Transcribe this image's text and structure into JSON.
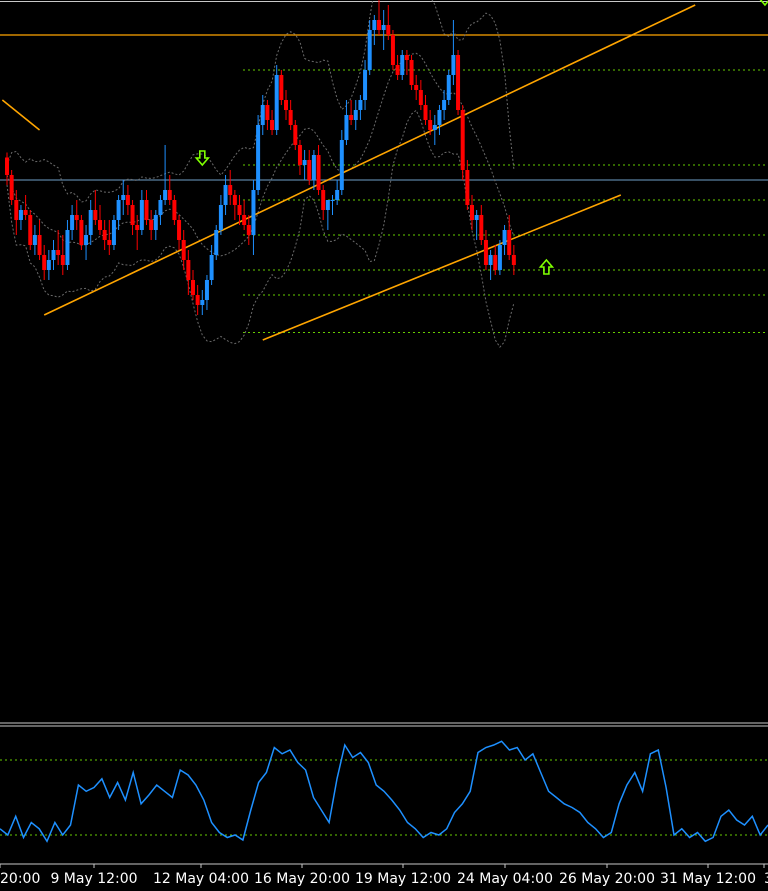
{
  "colors": {
    "background": "#000000",
    "frame": "#c8c8c8",
    "bull": "#1e90ff",
    "bear": "#ff0000",
    "level": "#66cc00",
    "trendline": "#ffa500",
    "horizontal_orange": "#ffa500",
    "horizontal_blue": "#5a7fa0",
    "envelope": "#6b6b6b",
    "oscillator": "#1e90ff",
    "osc_levels": "#66cc00",
    "arrow": "#7fff00"
  },
  "chart_data": [
    {
      "type": "candlestick",
      "title": "",
      "price_scale": [
        0,
        100
      ],
      "candles": [
        [
          70.5,
          71.5,
          65,
          67
        ],
        [
          67,
          68,
          61,
          62
        ],
        [
          62,
          64,
          55,
          58
        ],
        [
          58,
          61,
          56,
          60
        ],
        [
          60,
          63,
          58,
          59
        ],
        [
          59,
          60,
          52,
          53
        ],
        [
          53,
          57,
          51,
          55
        ],
        [
          55,
          58,
          50,
          51
        ],
        [
          51,
          53,
          46,
          48
        ],
        [
          48,
          52,
          46,
          50
        ],
        [
          50,
          54,
          48,
          52
        ],
        [
          52,
          56,
          49,
          51
        ],
        [
          51,
          55,
          47,
          49
        ],
        [
          49,
          58,
          48,
          56
        ],
        [
          56,
          61,
          54,
          59
        ],
        [
          59,
          62,
          56,
          58
        ],
        [
          58,
          59,
          52,
          53
        ],
        [
          53,
          57,
          50,
          55
        ],
        [
          55,
          62,
          53,
          60
        ],
        [
          60,
          64,
          57,
          58
        ],
        [
          58,
          61,
          55,
          56
        ],
        [
          56,
          58,
          52,
          54
        ],
        [
          54,
          58,
          51,
          53
        ],
        [
          53,
          59,
          52,
          58
        ],
        [
          58,
          63,
          56,
          62
        ],
        [
          62,
          66,
          59,
          63
        ],
        [
          63,
          65,
          59,
          61
        ],
        [
          61,
          62,
          55,
          57
        ],
        [
          57,
          59,
          52,
          56
        ],
        [
          56,
          64,
          55,
          62
        ],
        [
          62,
          64,
          57,
          58
        ],
        [
          58,
          60,
          54,
          56
        ],
        [
          56,
          60,
          54,
          59
        ],
        [
          59,
          63,
          57,
          62
        ],
        [
          62,
          73,
          61,
          64
        ],
        [
          64,
          67,
          61,
          62
        ],
        [
          62,
          63,
          57,
          58
        ],
        [
          58,
          59,
          52,
          54
        ],
        [
          54,
          56,
          48,
          50
        ],
        [
          50,
          52,
          43,
          46
        ],
        [
          46,
          48,
          42,
          43
        ],
        [
          43,
          45,
          39,
          41
        ],
        [
          41,
          44,
          39,
          42
        ],
        [
          42,
          47,
          40,
          46
        ],
        [
          46,
          53,
          45,
          51
        ],
        [
          51,
          57,
          50,
          56
        ],
        [
          56,
          63,
          55,
          61
        ],
        [
          61,
          67,
          59,
          65
        ],
        [
          65,
          68,
          61,
          63
        ],
        [
          63,
          64,
          58,
          61
        ],
        [
          61,
          63,
          57,
          59
        ],
        [
          59,
          62,
          56,
          57
        ],
        [
          57,
          59,
          53,
          55
        ],
        [
          55,
          66,
          51,
          64
        ],
        [
          64,
          79,
          63,
          77
        ],
        [
          77,
          83,
          75,
          81
        ],
        [
          81,
          82,
          76,
          78
        ],
        [
          78,
          80,
          75,
          76
        ],
        [
          76,
          89,
          75,
          87
        ],
        [
          87,
          88,
          81,
          82
        ],
        [
          82,
          84,
          78,
          80
        ],
        [
          80,
          82,
          76,
          77
        ],
        [
          77,
          78,
          72,
          73
        ],
        [
          73,
          74,
          67,
          69
        ],
        [
          69,
          72,
          66,
          70
        ],
        [
          70,
          72,
          65,
          66
        ],
        [
          66,
          72,
          64,
          71
        ],
        [
          71,
          73,
          63,
          64
        ],
        [
          64,
          65,
          58,
          60
        ],
        [
          60,
          62,
          56,
          62
        ],
        [
          62,
          63,
          59,
          62
        ],
        [
          62,
          66,
          61,
          64
        ],
        [
          64,
          76,
          63,
          74
        ],
        [
          74,
          82,
          73,
          79
        ],
        [
          79,
          82,
          77,
          78
        ],
        [
          78,
          82,
          76,
          80
        ],
        [
          80,
          83,
          78,
          82
        ],
        [
          82,
          90,
          80,
          88
        ],
        [
          88,
          98,
          87,
          96
        ],
        [
          96,
          99,
          93,
          98
        ],
        [
          98,
          102,
          95,
          96
        ],
        [
          96,
          100,
          92,
          97
        ],
        [
          97,
          101,
          94,
          95
        ],
        [
          95,
          96,
          88,
          89
        ],
        [
          89,
          91,
          86,
          87
        ],
        [
          87,
          92,
          86,
          91
        ],
        [
          91,
          92,
          87,
          90
        ],
        [
          90,
          91,
          84,
          85
        ],
        [
          85,
          87,
          82,
          84
        ],
        [
          84,
          86,
          80,
          81
        ],
        [
          81,
          83,
          77,
          78
        ],
        [
          78,
          80,
          75,
          76
        ],
        [
          76,
          79,
          73,
          77
        ],
        [
          77,
          81,
          75,
          80
        ],
        [
          80,
          84,
          78,
          82
        ],
        [
          82,
          88,
          81,
          87
        ],
        [
          87,
          98,
          85,
          91
        ],
        [
          91,
          92,
          79,
          80
        ],
        [
          80,
          81,
          66,
          68
        ],
        [
          68,
          70,
          60,
          61
        ],
        [
          61,
          63,
          56,
          58
        ],
        [
          58,
          60,
          54,
          59
        ],
        [
          59,
          61,
          53,
          54
        ],
        [
          54,
          56,
          48,
          49
        ],
        [
          49,
          52,
          46,
          51
        ],
        [
          51,
          53,
          47,
          48
        ],
        [
          48,
          54,
          47,
          53
        ],
        [
          53,
          57,
          51,
          56
        ],
        [
          56,
          59,
          50,
          51
        ],
        [
          51,
          53,
          47,
          49
        ]
      ],
      "horizontal_lines": [
        {
          "price": 95,
          "color": "orange"
        },
        {
          "price": 66,
          "color": "blue"
        }
      ],
      "level_lines": [
        110.5,
        88,
        69,
        62,
        55,
        48,
        43,
        35.5
      ],
      "trendlines": [
        {
          "from": [
            -1,
            82
          ],
          "to": [
            7,
            76
          ]
        },
        {
          "from": [
            8,
            39
          ],
          "to": [
            148,
            101
          ]
        },
        {
          "from": [
            55,
            34
          ],
          "to": [
            132,
            63
          ]
        }
      ],
      "arrows": [
        {
          "candle": 42,
          "direction": "down",
          "price": 70
        },
        {
          "candle": 135,
          "direction": "down",
          "price": 107
        },
        {
          "candle": 116,
          "direction": "up",
          "price": 49
        },
        {
          "candle": 163,
          "direction": "down",
          "price": 102
        }
      ],
      "x_tick_labels": [
        "20:00",
        "9 May 12:00",
        "12 May 04:00",
        "16 May 20:00",
        "19 May 12:00",
        "24 May 04:00",
        "26 May 20:00",
        "31 May 12:00",
        "3"
      ]
    },
    {
      "type": "line",
      "name": "oscillator",
      "y_range": [
        0,
        100
      ],
      "levels": [
        80,
        20
      ],
      "values": [
        25,
        20,
        35,
        18,
        30,
        25,
        15,
        30,
        20,
        28,
        60,
        55,
        58,
        65,
        50,
        62,
        48,
        70,
        45,
        52,
        60,
        55,
        50,
        72,
        68,
        60,
        48,
        30,
        22,
        18,
        20,
        16,
        40,
        62,
        70,
        90,
        85,
        88,
        78,
        72,
        50,
        40,
        30,
        65,
        92,
        82,
        86,
        78,
        60,
        55,
        48,
        40,
        30,
        25,
        18,
        22,
        20,
        25,
        38,
        45,
        55,
        86,
        90,
        92,
        95,
        88,
        90,
        80,
        85,
        70,
        55,
        50,
        45,
        42,
        38,
        30,
        25,
        18,
        22,
        45,
        60,
        70,
        55,
        85,
        88,
        58,
        20,
        25,
        18,
        22,
        15,
        18,
        35,
        40,
        32,
        28,
        35,
        20,
        28
      ]
    }
  ]
}
